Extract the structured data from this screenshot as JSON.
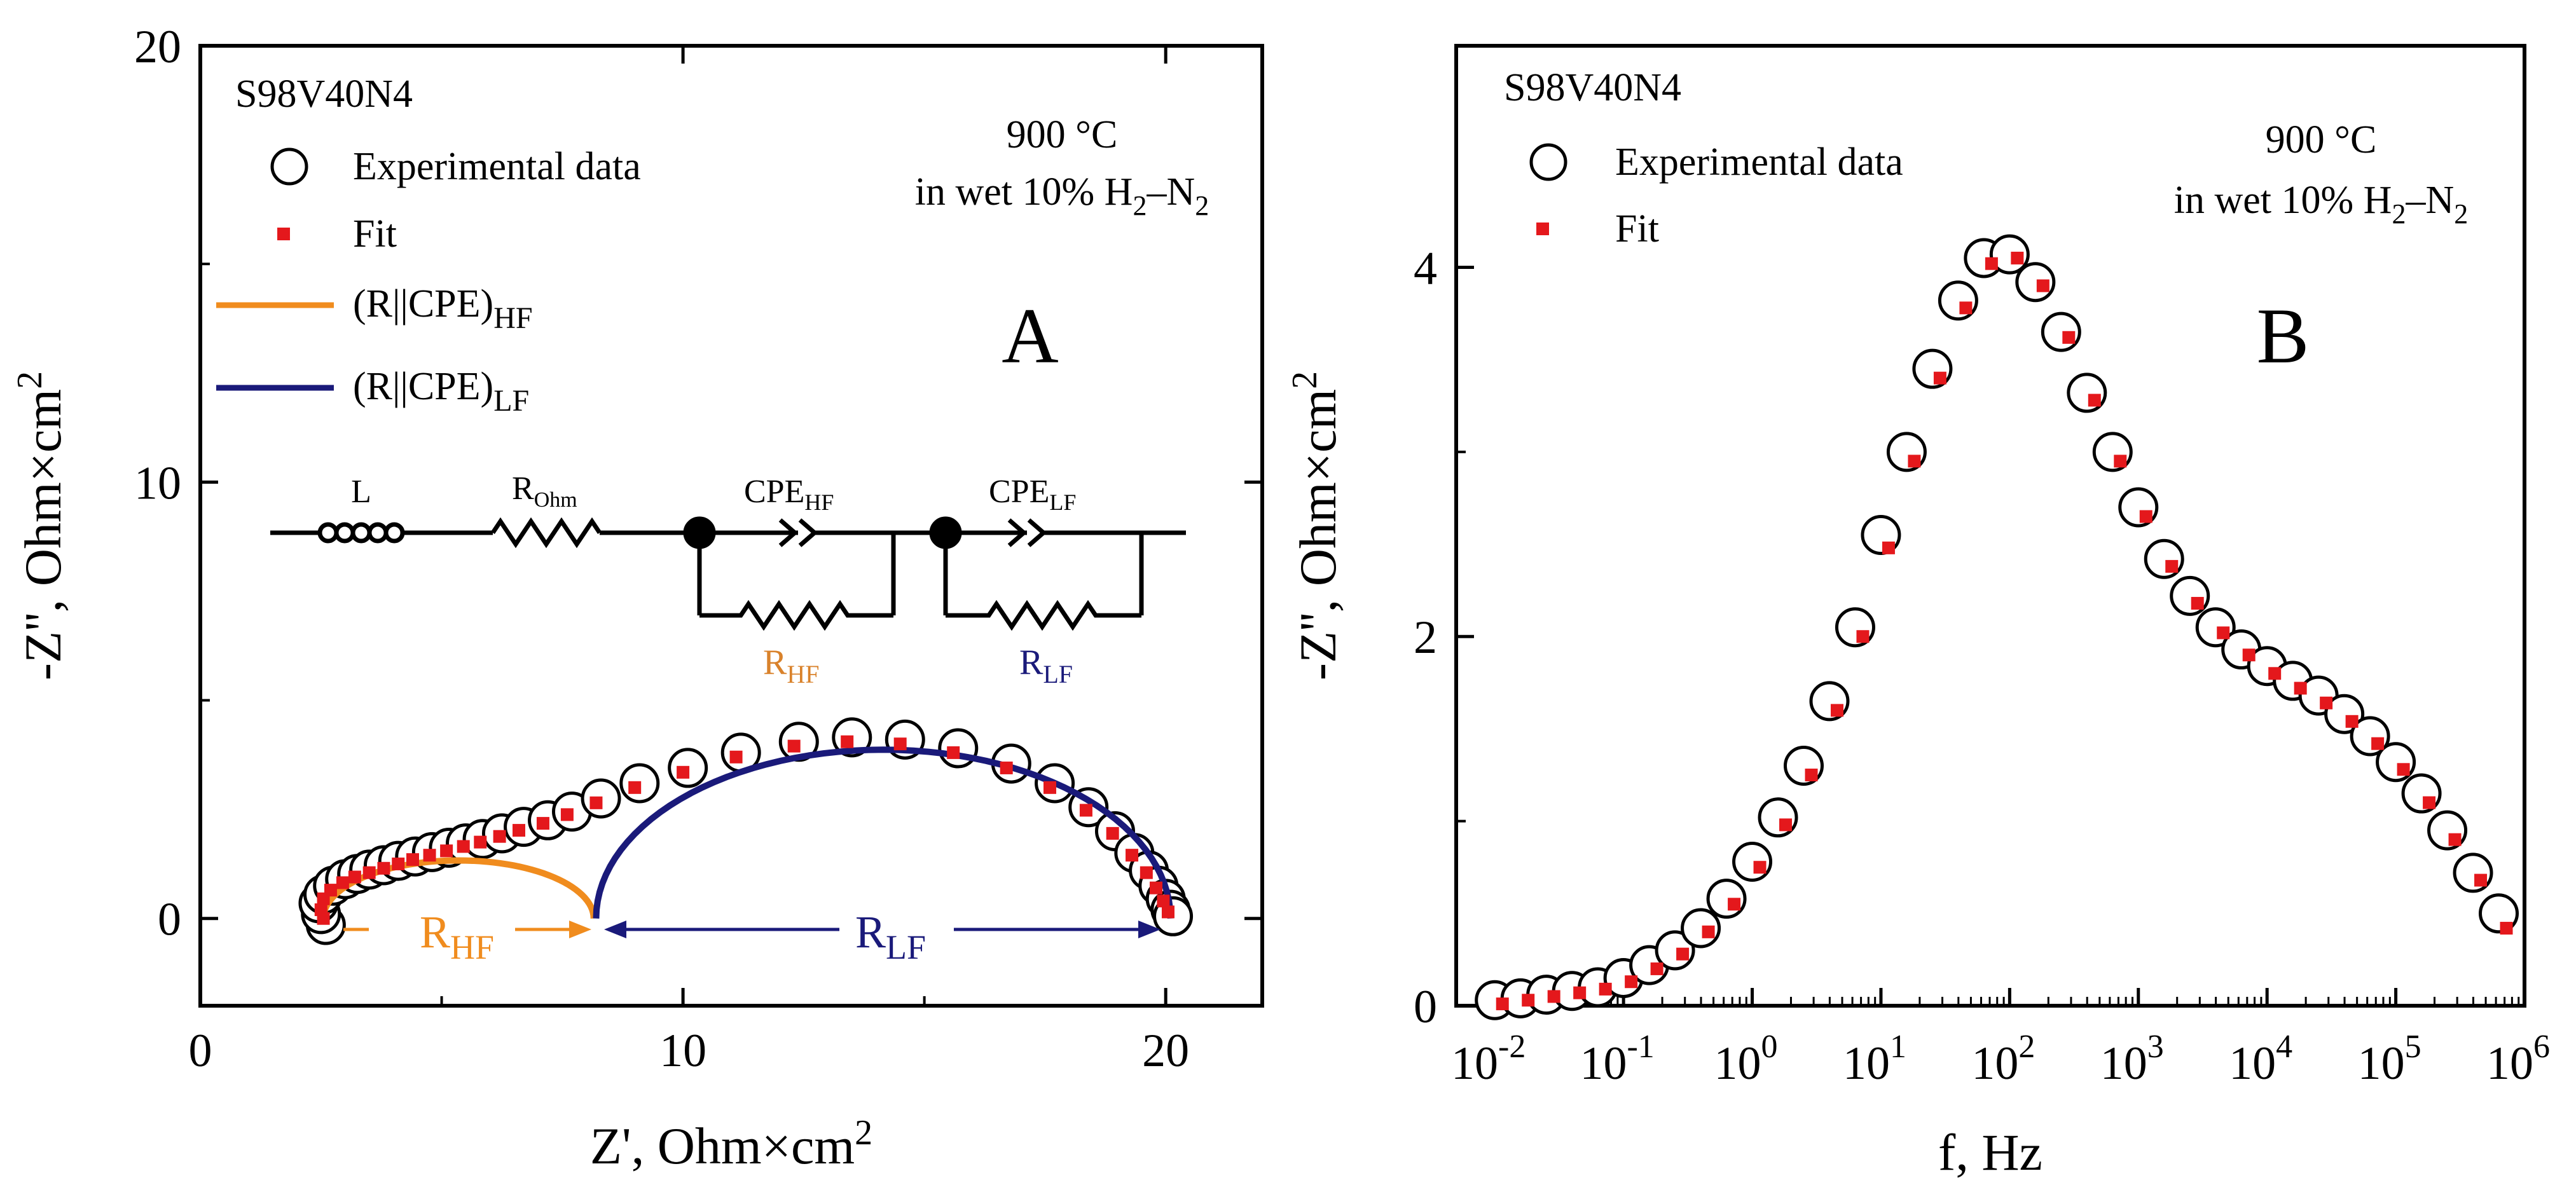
{
  "chart_data": [
    {
      "panel": "A",
      "type": "scatter",
      "panel_label": "A",
      "sample": "S98V40N4",
      "condition_line1": "900 °C",
      "condition_line2_prefix": "in wet 10% H",
      "condition_line2_mid": "–N",
      "condition_sub": "2",
      "xlabel_main": "Z', Ohm×cm",
      "xlabel_sup": "2",
      "ylabel_main": "-Z'', Ohm×cm",
      "ylabel_sup": "2",
      "xlim": [
        0,
        22
      ],
      "ylim": [
        -2,
        20
      ],
      "x_ticks": [
        0,
        10,
        20
      ],
      "y_ticks": [
        0,
        10,
        20
      ],
      "legend": {
        "experimental": "Experimental data",
        "fit": "Fit",
        "hf_label": "(R||CPE)",
        "hf_sub": "HF",
        "lf_label": "(R||CPE)",
        "lf_sub": "LF"
      },
      "circuit": {
        "L": "L",
        "R_ohm": "R",
        "R_ohm_sub": "Ohm",
        "CPE_hf": "CPE",
        "CPE_hf_sub": "HF",
        "CPE_lf": "CPE",
        "CPE_lf_sub": "LF",
        "R_hf": "R",
        "R_hf_sub": "HF",
        "R_lf": "R",
        "R_lf_sub": "LF"
      },
      "annotations": {
        "rhf": "R",
        "rhf_sub": "HF",
        "rlf": "R",
        "rlf_sub": "LF"
      },
      "experimental": {
        "x": [
          2.6,
          2.5,
          2.45,
          2.55,
          2.75,
          3.0,
          3.25,
          3.5,
          3.8,
          4.1,
          4.45,
          4.8,
          5.15,
          5.5,
          5.85,
          6.25,
          6.7,
          7.2,
          7.7,
          8.3,
          9.1,
          10.1,
          11.2,
          12.4,
          13.5,
          14.6,
          15.7,
          16.8,
          17.7,
          18.4,
          18.95,
          19.35,
          19.65,
          19.85,
          20.0,
          20.1,
          20.15
        ],
        "y": [
          -0.15,
          0.1,
          0.35,
          0.55,
          0.75,
          0.9,
          1.02,
          1.12,
          1.22,
          1.32,
          1.42,
          1.52,
          1.62,
          1.72,
          1.82,
          1.95,
          2.1,
          2.25,
          2.45,
          2.75,
          3.1,
          3.45,
          3.8,
          4.05,
          4.15,
          4.1,
          3.9,
          3.55,
          3.1,
          2.55,
          2.0,
          1.5,
          1.1,
          0.75,
          0.45,
          0.2,
          0.05
        ]
      },
      "fit": {
        "x": [
          2.55,
          2.5,
          2.55,
          2.7,
          2.95,
          3.2,
          3.5,
          3.8,
          4.1,
          4.4,
          4.75,
          5.1,
          5.45,
          5.8,
          6.2,
          6.6,
          7.1,
          7.6,
          8.2,
          9.0,
          10.0,
          11.1,
          12.3,
          13.4,
          14.5,
          15.6,
          16.7,
          17.6,
          18.35,
          18.9,
          19.3,
          19.6,
          19.8,
          19.95,
          20.05
        ],
        "y": [
          0.0,
          0.2,
          0.45,
          0.65,
          0.82,
          0.95,
          1.05,
          1.15,
          1.25,
          1.35,
          1.45,
          1.55,
          1.65,
          1.75,
          1.88,
          2.02,
          2.18,
          2.38,
          2.65,
          3.0,
          3.35,
          3.7,
          3.95,
          4.05,
          4.0,
          3.8,
          3.45,
          3.0,
          2.48,
          1.95,
          1.45,
          1.05,
          0.7,
          0.4,
          0.15
        ]
      },
      "hf_arc": {
        "center_x": 5.35,
        "radius": 2.8,
        "color": "#f08c1e"
      },
      "lf_arc": {
        "center_x": 14.15,
        "radius": 5.95,
        "color": "#1a1a7a"
      }
    },
    {
      "panel": "B",
      "type": "scatter",
      "panel_label": "B",
      "sample": "S98V40N4",
      "condition_line1": "900 °C",
      "condition_line2_prefix": "in wet 10% H",
      "condition_line2_mid": "–N",
      "condition_sub": "2",
      "xlabel": "f, Hz",
      "ylabel_main": "-Z'', Ohm×cm",
      "ylabel_sup": "2",
      "xscale": "log",
      "xlim_log10": [
        -2.3,
        6
      ],
      "ylim": [
        0,
        5.2
      ],
      "x_tick_exponents": [
        "-2",
        "-1",
        "0",
        "1",
        "2",
        "3",
        "4",
        "5",
        "6"
      ],
      "x_tick_base": "10",
      "y_ticks": [
        0,
        2,
        4
      ],
      "legend": {
        "experimental": "Experimental data",
        "fit": "Fit"
      },
      "experimental": {
        "log_f": [
          -2.0,
          -1.8,
          -1.6,
          -1.4,
          -1.2,
          -1.0,
          -0.8,
          -0.6,
          -0.4,
          -0.2,
          0.0,
          0.2,
          0.4,
          0.6,
          0.8,
          1.0,
          1.2,
          1.4,
          1.6,
          1.8,
          2.0,
          2.2,
          2.4,
          2.6,
          2.8,
          3.0,
          3.2,
          3.4,
          3.6,
          3.8,
          4.0,
          4.2,
          4.4,
          4.6,
          4.8,
          5.0,
          5.2,
          5.4,
          5.6,
          5.8
        ],
        "y": [
          0.03,
          0.04,
          0.06,
          0.08,
          0.1,
          0.15,
          0.22,
          0.3,
          0.42,
          0.58,
          0.78,
          1.02,
          1.3,
          1.65,
          2.05,
          2.55,
          3.0,
          3.45,
          3.82,
          4.05,
          4.07,
          3.92,
          3.65,
          3.32,
          3.0,
          2.7,
          2.42,
          2.22,
          2.05,
          1.93,
          1.84,
          1.76,
          1.68,
          1.58,
          1.46,
          1.32,
          1.15,
          0.95,
          0.72,
          0.5
        ]
      },
      "fit": {
        "log_f": [
          -2.0,
          -1.8,
          -1.6,
          -1.4,
          -1.2,
          -1.0,
          -0.8,
          -0.6,
          -0.4,
          -0.2,
          0.0,
          0.2,
          0.4,
          0.6,
          0.8,
          1.0,
          1.2,
          1.4,
          1.6,
          1.8,
          2.0,
          2.2,
          2.4,
          2.6,
          2.8,
          3.0,
          3.2,
          3.4,
          3.6,
          3.8,
          4.0,
          4.2,
          4.4,
          4.6,
          4.8,
          5.0,
          5.2,
          5.4,
          5.6,
          5.8
        ],
        "y": [
          0.01,
          0.03,
          0.05,
          0.07,
          0.09,
          0.13,
          0.2,
          0.28,
          0.4,
          0.55,
          0.75,
          0.98,
          1.25,
          1.6,
          2.0,
          2.48,
          2.95,
          3.4,
          3.78,
          4.02,
          4.05,
          3.9,
          3.62,
          3.28,
          2.95,
          2.65,
          2.38,
          2.18,
          2.02,
          1.9,
          1.8,
          1.72,
          1.64,
          1.54,
          1.42,
          1.28,
          1.1,
          0.9,
          0.68,
          0.42
        ]
      }
    }
  ],
  "colors": {
    "fit": "#e4181c",
    "hf": "#f08c1e",
    "lf": "#1a1a7a",
    "axis": "#000000"
  }
}
